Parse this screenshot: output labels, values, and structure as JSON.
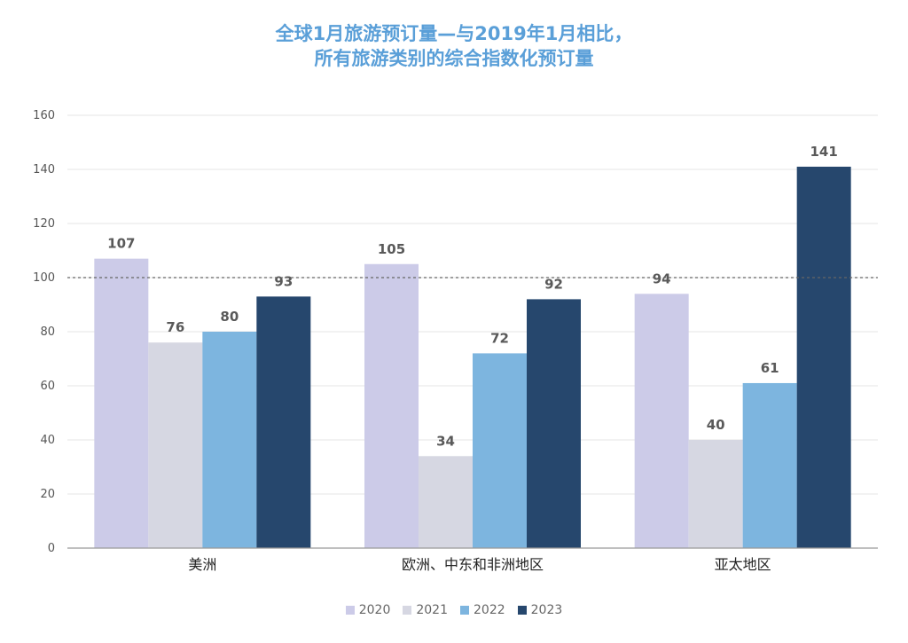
{
  "title": {
    "line1": "全球1月旅游预订量—与2019年1月相比，",
    "line2": "所有旅游类别的综合指数化预订量"
  },
  "chart_data": {
    "type": "bar",
    "categories": [
      "美洲",
      "欧洲、中东和非洲地区",
      "亚太地区"
    ],
    "series": [
      {
        "name": "2020",
        "values": [
          107,
          105,
          94
        ],
        "color": "#cccbe8"
      },
      {
        "name": "2021",
        "values": [
          76,
          34,
          40
        ],
        "color": "#d6d7e2"
      },
      {
        "name": "2022",
        "values": [
          80,
          72,
          61
        ],
        "color": "#7db5df"
      },
      {
        "name": "2023",
        "values": [
          93,
          92,
          141
        ],
        "color": "#26476d"
      }
    ],
    "ylim": [
      0,
      160
    ],
    "yticks": [
      0,
      20,
      40,
      60,
      80,
      100,
      120,
      140,
      160
    ],
    "reference_line": 100,
    "grid": true,
    "legend_position": "bottom"
  }
}
